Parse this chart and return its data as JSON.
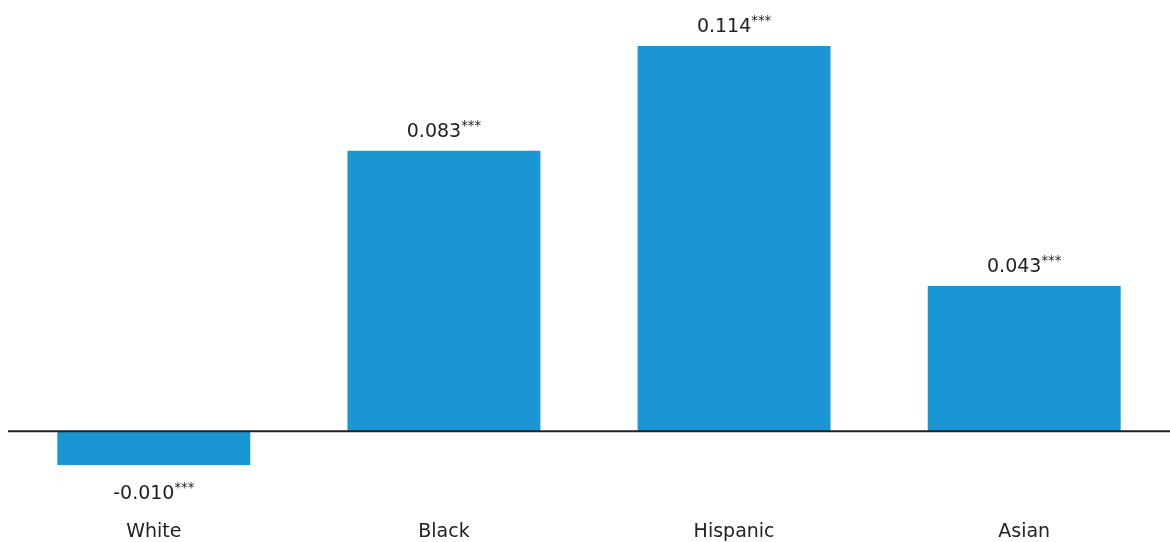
{
  "chart_data": {
    "type": "bar",
    "categories": [
      "White",
      "Black",
      "Hispanic",
      "Asian"
    ],
    "values": [
      -0.01,
      0.083,
      0.114,
      0.043
    ],
    "value_labels": [
      "-0.010$^{***}$",
      "0.083$^{***}$",
      "0.114$^{***}$",
      "0.043$^{***}$"
    ],
    "color": "#1a96d4"
  }
}
